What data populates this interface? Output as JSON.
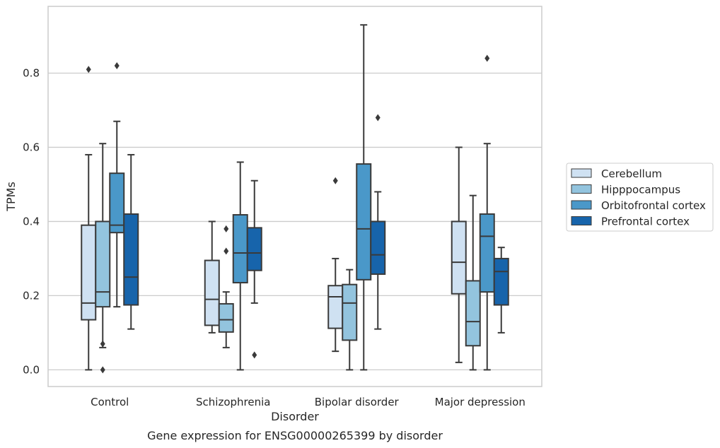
{
  "chart_data": {
    "type": "box",
    "title": "",
    "caption": "Gene expression for ENSG00000265399 by disorder",
    "xlabel": "Disorder",
    "ylabel": "TPMs",
    "ylim": [
      -0.045,
      0.98
    ],
    "yticks": [
      0.0,
      0.2,
      0.4,
      0.6,
      0.8
    ],
    "ytick_labels": [
      "0.0",
      "0.2",
      "0.4",
      "0.6",
      "0.8"
    ],
    "grid": "horizontal",
    "legend_position": "right",
    "categories": [
      "Control",
      "Schizophrenia",
      "Bipolar disorder",
      "Major depression"
    ],
    "series": [
      {
        "name": "Cerebellum",
        "color": "#cfe1f2",
        "boxes": [
          {
            "whislo": 0.0,
            "q1": 0.135,
            "med": 0.18,
            "q3": 0.39,
            "whishi": 0.58,
            "fliers": [
              0.81
            ]
          },
          {
            "whislo": 0.1,
            "q1": 0.12,
            "med": 0.19,
            "q3": 0.295,
            "whishi": 0.4,
            "fliers": []
          },
          {
            "whislo": 0.05,
            "q1": 0.112,
            "med": 0.197,
            "q3": 0.227,
            "whishi": 0.3,
            "fliers": [
              0.51
            ]
          },
          {
            "whislo": 0.02,
            "q1": 0.205,
            "med": 0.29,
            "q3": 0.4,
            "whishi": 0.6,
            "fliers": []
          }
        ]
      },
      {
        "name": "Hipppocampus",
        "color": "#93c4de",
        "boxes": [
          {
            "whislo": 0.06,
            "q1": 0.17,
            "med": 0.21,
            "q3": 0.4,
            "whishi": 0.61,
            "fliers": [
              0.07,
              0.0
            ]
          },
          {
            "whislo": 0.06,
            "q1": 0.102,
            "med": 0.135,
            "q3": 0.178,
            "whishi": 0.21,
            "fliers": [
              0.38,
              0.32
            ]
          },
          {
            "whislo": 0.0,
            "q1": 0.08,
            "med": 0.18,
            "q3": 0.23,
            "whishi": 0.27,
            "fliers": []
          },
          {
            "whislo": 0.0,
            "q1": 0.065,
            "med": 0.13,
            "q3": 0.24,
            "whishi": 0.47,
            "fliers": []
          }
        ]
      },
      {
        "name": "Orbitofrontal cortex",
        "color": "#4a98c9",
        "boxes": [
          {
            "whislo": 0.17,
            "q1": 0.37,
            "med": 0.39,
            "q3": 0.53,
            "whishi": 0.67,
            "fliers": [
              0.82
            ]
          },
          {
            "whislo": 0.0,
            "q1": 0.235,
            "med": 0.315,
            "q3": 0.418,
            "whishi": 0.56,
            "fliers": []
          },
          {
            "whislo": 0.0,
            "q1": 0.243,
            "med": 0.38,
            "q3": 0.555,
            "whishi": 0.93,
            "fliers": []
          },
          {
            "whislo": 0.0,
            "q1": 0.21,
            "med": 0.36,
            "q3": 0.42,
            "whishi": 0.61,
            "fliers": [
              0.84
            ]
          }
        ]
      },
      {
        "name": "Prefrontal cortex",
        "color": "#1764ab",
        "boxes": [
          {
            "whislo": 0.11,
            "q1": 0.175,
            "med": 0.25,
            "q3": 0.42,
            "whishi": 0.58,
            "fliers": []
          },
          {
            "whislo": 0.18,
            "q1": 0.268,
            "med": 0.315,
            "q3": 0.383,
            "whishi": 0.51,
            "fliers": [
              0.04
            ]
          },
          {
            "whislo": 0.11,
            "q1": 0.258,
            "med": 0.31,
            "q3": 0.4,
            "whishi": 0.48,
            "fliers": [
              0.68
            ]
          },
          {
            "whislo": 0.1,
            "q1": 0.175,
            "med": 0.265,
            "q3": 0.3,
            "whishi": 0.33,
            "fliers": []
          }
        ]
      }
    ]
  }
}
